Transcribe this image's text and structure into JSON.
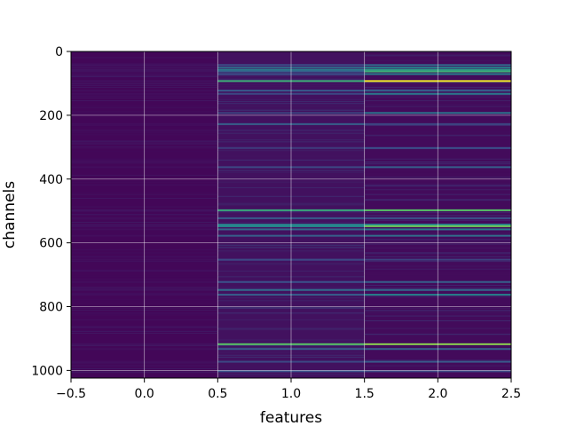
{
  "chart_data": {
    "type": "heatmap",
    "title": "",
    "xlabel": "features",
    "ylabel": "channels",
    "xlim": [
      -0.5,
      2.5
    ],
    "ylim": [
      1024,
      0
    ],
    "y_inverted": true,
    "grid": true,
    "colormap": "viridis",
    "x_ticks": [
      -0.5,
      0.0,
      0.5,
      1.0,
      1.5,
      2.0,
      2.5
    ],
    "x_tick_labels": [
      "−0.5",
      "0.0",
      "0.5",
      "1.0",
      "1.5",
      "2.0",
      "2.5"
    ],
    "y_ticks": [
      0,
      200,
      400,
      600,
      800,
      1000
    ],
    "y_tick_labels": [
      "0",
      "200",
      "400",
      "600",
      "800",
      "1000"
    ],
    "n_channels": 1024,
    "features": [
      0,
      1,
      2
    ],
    "value_range": [
      0,
      1
    ],
    "base_values": [
      0.02,
      0.05,
      0.03
    ],
    "highlighted_channels": [
      {
        "channel": 40,
        "values": [
          0.06,
          0.22,
          0.35
        ]
      },
      {
        "channel": 48,
        "values": [
          0.05,
          0.35,
          0.45
        ]
      },
      {
        "channel": 55,
        "values": [
          0.06,
          0.42,
          0.55
        ]
      },
      {
        "channel": 60,
        "values": [
          0.05,
          0.3,
          0.62
        ]
      },
      {
        "channel": 68,
        "values": [
          0.04,
          0.25,
          0.42
        ]
      },
      {
        "channel": 90,
        "values": [
          0.05,
          0.62,
          0.98
        ]
      },
      {
        "channel": 120,
        "values": [
          0.04,
          0.28,
          0.3
        ]
      },
      {
        "channel": 130,
        "values": [
          0.04,
          0.22,
          0.4
        ]
      },
      {
        "channel": 190,
        "values": [
          0.03,
          0.2,
          0.38
        ]
      },
      {
        "channel": 225,
        "values": [
          0.04,
          0.3,
          0.22
        ]
      },
      {
        "channel": 300,
        "values": [
          0.03,
          0.18,
          0.25
        ]
      },
      {
        "channel": 360,
        "values": [
          0.04,
          0.22,
          0.3
        ]
      },
      {
        "channel": 495,
        "values": [
          0.06,
          0.6,
          0.72
        ]
      },
      {
        "channel": 520,
        "values": [
          0.04,
          0.28,
          0.25
        ]
      },
      {
        "channel": 540,
        "values": [
          0.05,
          0.42,
          0.45
        ]
      },
      {
        "channel": 545,
        "values": [
          0.05,
          0.48,
          0.78
        ]
      },
      {
        "channel": 555,
        "values": [
          0.04,
          0.32,
          0.4
        ]
      },
      {
        "channel": 575,
        "values": [
          0.04,
          0.3,
          0.36
        ]
      },
      {
        "channel": 650,
        "values": [
          0.04,
          0.22,
          0.2
        ]
      },
      {
        "channel": 720,
        "values": [
          0.04,
          0.25,
          0.3
        ]
      },
      {
        "channel": 745,
        "values": [
          0.05,
          0.35,
          0.34
        ]
      },
      {
        "channel": 760,
        "values": [
          0.04,
          0.3,
          0.45
        ]
      },
      {
        "channel": 915,
        "values": [
          0.05,
          0.72,
          0.82
        ]
      },
      {
        "channel": 930,
        "values": [
          0.04,
          0.28,
          0.3
        ]
      },
      {
        "channel": 970,
        "values": [
          0.04,
          0.22,
          0.28
        ]
      },
      {
        "channel": 1000,
        "values": [
          0.04,
          0.25,
          0.22
        ]
      }
    ]
  }
}
